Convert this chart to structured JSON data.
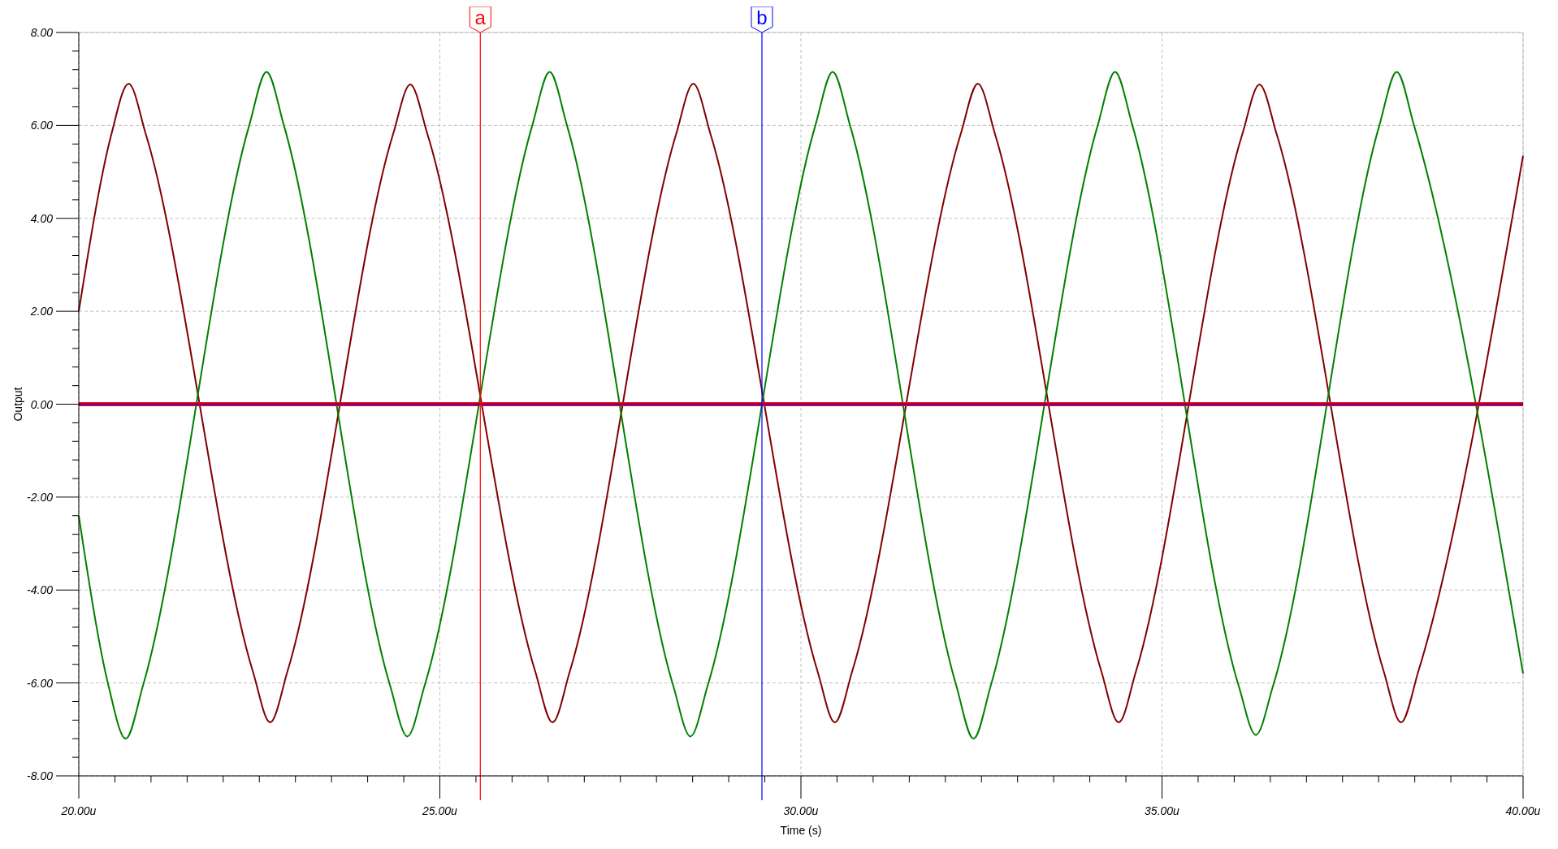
{
  "chart_data": {
    "type": "line",
    "xlabel": "Time (s)",
    "ylabel": "Output",
    "xlim": [
      20,
      40
    ],
    "ylim": [
      -8,
      8
    ],
    "xticks": [
      {
        "value": 20,
        "label": "20.00u"
      },
      {
        "value": 20.5,
        "label": null
      },
      {
        "value": 21,
        "label": null
      },
      {
        "value": 21.5,
        "label": null
      },
      {
        "value": 22,
        "label": null
      },
      {
        "value": 22.5,
        "label": null
      },
      {
        "value": 23,
        "label": null
      },
      {
        "value": 23.5,
        "label": null
      },
      {
        "value": 24,
        "label": null
      },
      {
        "value": 24.5,
        "label": null
      },
      {
        "value": 25,
        "label": "25.00u"
      },
      {
        "value": 25.5,
        "label": null
      },
      {
        "value": 26,
        "label": null
      },
      {
        "value": 26.5,
        "label": null
      },
      {
        "value": 27,
        "label": null
      },
      {
        "value": 27.5,
        "label": null
      },
      {
        "value": 28,
        "label": null
      },
      {
        "value": 28.5,
        "label": null
      },
      {
        "value": 29,
        "label": null
      },
      {
        "value": 29.5,
        "label": null
      },
      {
        "value": 30,
        "label": "30.00u"
      },
      {
        "value": 30.5,
        "label": null
      },
      {
        "value": 31,
        "label": null
      },
      {
        "value": 31.5,
        "label": null
      },
      {
        "value": 32,
        "label": null
      },
      {
        "value": 32.5,
        "label": null
      },
      {
        "value": 33,
        "label": null
      },
      {
        "value": 33.5,
        "label": null
      },
      {
        "value": 34,
        "label": null
      },
      {
        "value": 34.5,
        "label": null
      },
      {
        "value": 35,
        "label": "35.00u"
      },
      {
        "value": 35.5,
        "label": null
      },
      {
        "value": 36,
        "label": null
      },
      {
        "value": 36.5,
        "label": null
      },
      {
        "value": 37,
        "label": null
      },
      {
        "value": 37.5,
        "label": null
      },
      {
        "value": 38,
        "label": null
      },
      {
        "value": 38.5,
        "label": null
      },
      {
        "value": 39,
        "label": null
      },
      {
        "value": 39.5,
        "label": null
      },
      {
        "value": 40,
        "label": "40.00u"
      }
    ],
    "yticks": [
      {
        "value": -8,
        "label": "-8.00"
      },
      {
        "value": -7.6,
        "label": null
      },
      {
        "value": -7.2,
        "label": null
      },
      {
        "value": -6.8,
        "label": null
      },
      {
        "value": -6.4,
        "label": null
      },
      {
        "value": -6,
        "label": "-6.00"
      },
      {
        "value": -5.6,
        "label": null
      },
      {
        "value": -5.2,
        "label": null
      },
      {
        "value": -4.8,
        "label": null
      },
      {
        "value": -4.4,
        "label": null
      },
      {
        "value": -4,
        "label": "-4.00"
      },
      {
        "value": -3.6,
        "label": null
      },
      {
        "value": -3.2,
        "label": null
      },
      {
        "value": -2.8,
        "label": null
      },
      {
        "value": -2.4,
        "label": null
      },
      {
        "value": -2,
        "label": "-2.00"
      },
      {
        "value": -1.6,
        "label": null
      },
      {
        "value": -1.2,
        "label": null
      },
      {
        "value": -0.8,
        "label": null
      },
      {
        "value": -0.4,
        "label": null
      },
      {
        "value": 0,
        "label": "0.00"
      },
      {
        "value": 0.4,
        "label": null
      },
      {
        "value": 0.8,
        "label": null
      },
      {
        "value": 1.2,
        "label": null
      },
      {
        "value": 1.6,
        "label": null
      },
      {
        "value": 2,
        "label": "2.00"
      },
      {
        "value": 2.4,
        "label": null
      },
      {
        "value": 2.8,
        "label": null
      },
      {
        "value": 3.2,
        "label": null
      },
      {
        "value": 3.6,
        "label": null
      },
      {
        "value": 4,
        "label": "4.00"
      },
      {
        "value": 4.4,
        "label": null
      },
      {
        "value": 4.8,
        "label": null
      },
      {
        "value": 5.2,
        "label": null
      },
      {
        "value": 5.6,
        "label": null
      },
      {
        "value": 6,
        "label": "6.00"
      },
      {
        "value": 6.4,
        "label": null
      },
      {
        "value": 6.8,
        "label": null
      },
      {
        "value": 7.2,
        "label": null
      },
      {
        "value": 7.6,
        "label": null
      },
      {
        "value": 8,
        "label": "8.00"
      }
    ],
    "grid": true,
    "line_style": "solid",
    "marker": "none",
    "series": [
      {
        "color": "#800000",
        "x": [
          20,
          20.45,
          20.69,
          20.93,
          22.41,
          22.65,
          22.89,
          24.35,
          24.59,
          24.83,
          26.32,
          26.56,
          26.8,
          28.27,
          28.51,
          28.75,
          30.23,
          30.47,
          30.71,
          32.21,
          32.45,
          32.69,
          34.16,
          34.4,
          34.64,
          36.11,
          36.35,
          36.59,
          38.07,
          38.31,
          38.55,
          40
        ],
        "values": [
          2.0,
          5.8,
          6.9,
          5.8,
          -5.75,
          -6.85,
          -5.75,
          5.8,
          6.88,
          5.8,
          -5.75,
          -6.85,
          -5.75,
          5.8,
          6.9,
          5.8,
          -5.75,
          -6.85,
          -5.75,
          5.8,
          6.9,
          5.8,
          -5.75,
          -6.85,
          -5.75,
          5.8,
          6.88,
          5.8,
          -5.75,
          -6.85,
          -5.75,
          5.35
        ]
      },
      {
        "color": "#008000",
        "x": [
          20,
          20.41,
          20.65,
          20.89,
          22.36,
          22.6,
          22.84,
          24.31,
          24.55,
          24.79,
          26.28,
          26.52,
          26.76,
          28.23,
          28.47,
          28.71,
          30.2,
          30.44,
          30.68,
          32.15,
          32.39,
          32.63,
          34.11,
          34.35,
          34.59,
          36.06,
          36.3,
          36.54,
          38.01,
          38.25,
          38.49,
          40
        ],
        "values": [
          -2.4,
          -6.05,
          -7.2,
          -6.05,
          6.0,
          7.15,
          6.0,
          -6.05,
          -7.15,
          -6.05,
          6.0,
          7.15,
          6.0,
          -6.05,
          -7.15,
          -6.05,
          6.0,
          7.15,
          6.0,
          -6.05,
          -7.2,
          -6.05,
          6.0,
          7.15,
          6.0,
          -6.05,
          -7.12,
          -6.05,
          6.0,
          7.15,
          6.0,
          -5.8
        ]
      },
      {
        "color": "#ff0000",
        "x": [
          20,
          40
        ],
        "values": [
          0,
          0
        ]
      },
      {
        "color": "#0000ff",
        "x": [
          20,
          40
        ],
        "values": [
          0,
          0
        ]
      }
    ],
    "ref_lines": [
      {
        "axis": "x",
        "value": 25.56,
        "label": "a",
        "color": "#ff0000"
      },
      {
        "axis": "x",
        "value": 29.46,
        "label": "b",
        "color": "#0000ff"
      }
    ]
  }
}
